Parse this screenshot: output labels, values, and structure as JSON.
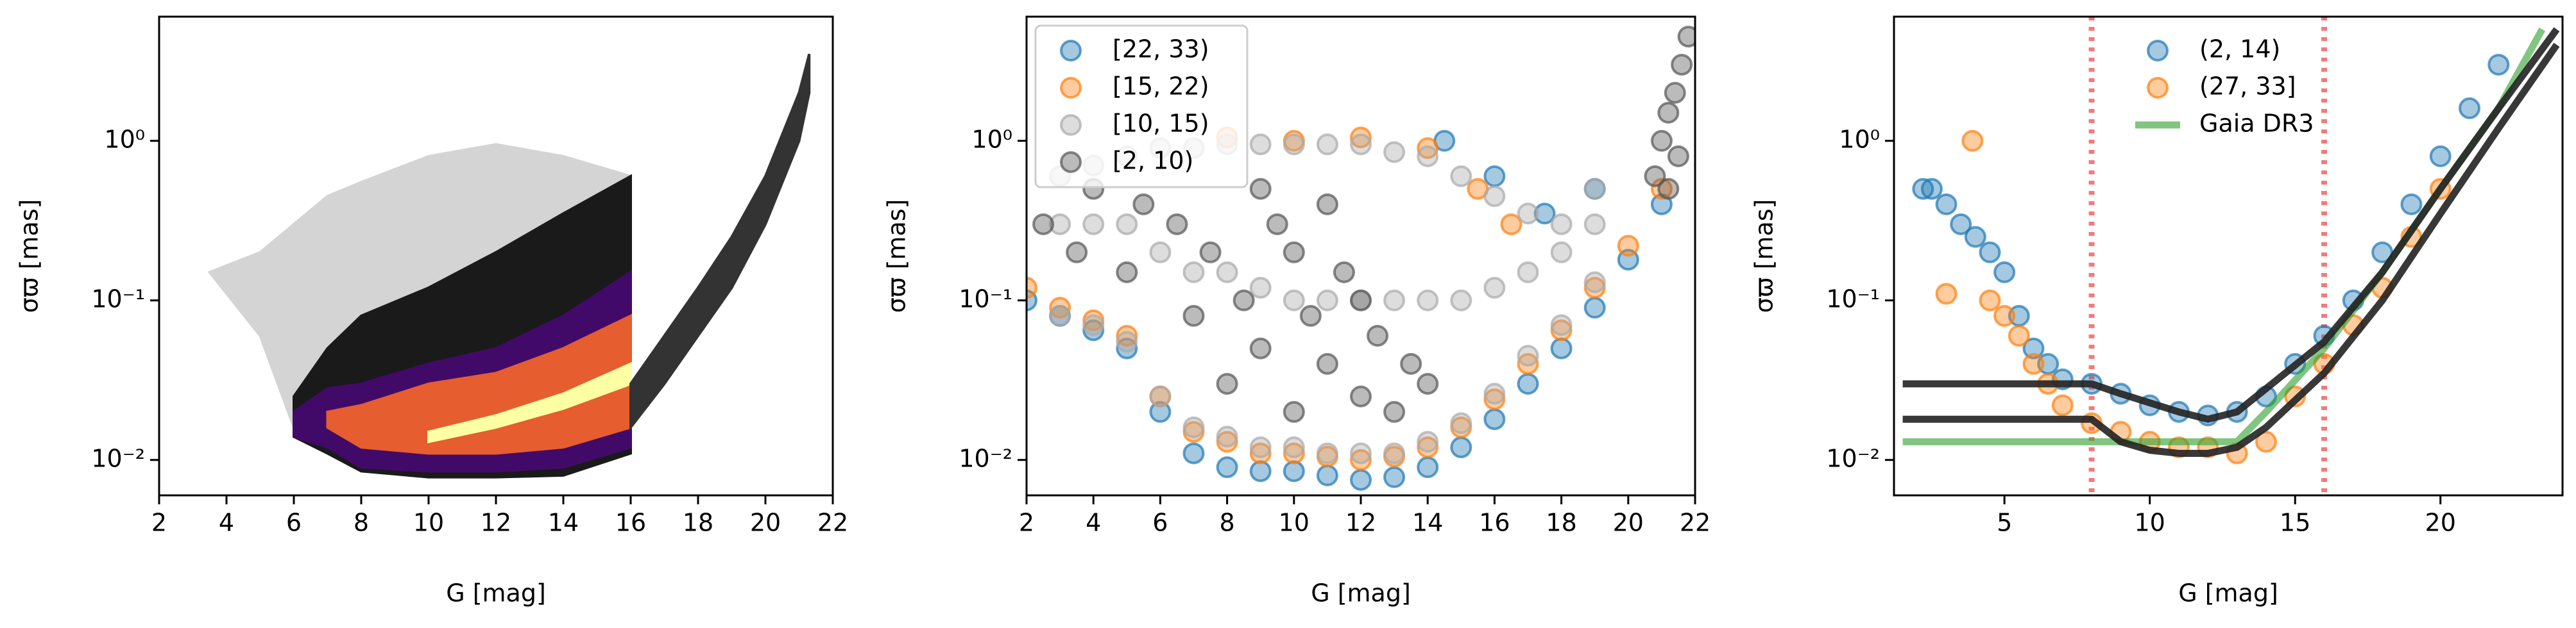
{
  "chart_data": [
    {
      "type": "density",
      "xlabel": "G [mag]",
      "ylabel": "σϖ [mas]",
      "ylog": true,
      "xlim": [
        2,
        22
      ],
      "xticks": [
        2,
        4,
        6,
        8,
        10,
        12,
        14,
        16,
        18,
        20,
        22
      ],
      "ylim": [
        0.006,
        6
      ],
      "yticks": [
        {
          "value": 0.01,
          "label": "10⁻²"
        },
        {
          "value": 0.1,
          "label": "10⁻¹"
        },
        {
          "value": 1,
          "label": "10⁰"
        }
      ],
      "series": [
        {
          "color": "#d4d4d4",
          "x": [
            3.5,
            5,
            6,
            7,
            8,
            10,
            12,
            14,
            16
          ],
          "low": [
            0.15,
            0.06,
            0.016,
            0.012,
            0.009,
            0.008,
            0.008,
            0.008,
            0.012
          ],
          "high": [
            0.15,
            0.2,
            0.3,
            0.45,
            0.55,
            0.8,
            0.95,
            0.8,
            0.6
          ]
        },
        {
          "color": "#1a1a1a",
          "x": [
            6,
            7,
            8,
            10,
            12,
            14,
            16
          ],
          "low": [
            0.014,
            0.011,
            0.0085,
            0.0078,
            0.0078,
            0.008,
            0.011
          ],
          "high": [
            0.025,
            0.05,
            0.08,
            0.12,
            0.2,
            0.35,
            0.6
          ]
        },
        {
          "color": "#420a68",
          "x": [
            6,
            7,
            8,
            10,
            12,
            14,
            16
          ],
          "low": [
            0.014,
            0.012,
            0.009,
            0.0085,
            0.0085,
            0.009,
            0.012
          ],
          "high": [
            0.02,
            0.028,
            0.03,
            0.04,
            0.05,
            0.08,
            0.15
          ]
        },
        {
          "color": "#e65d2f",
          "x": [
            7,
            8,
            10,
            12,
            14,
            16
          ],
          "low": [
            0.016,
            0.012,
            0.011,
            0.011,
            0.012,
            0.016
          ],
          "high": [
            0.02,
            0.022,
            0.03,
            0.035,
            0.05,
            0.08
          ]
        },
        {
          "color": "#fcffa4",
          "x": [
            10,
            12,
            14,
            16
          ],
          "low": [
            0.013,
            0.016,
            0.021,
            0.03
          ],
          "high": [
            0.015,
            0.019,
            0.026,
            0.04
          ]
        },
        {
          "color": "#333333",
          "x": [
            16,
            17,
            18,
            19,
            20,
            21,
            21.3
          ],
          "low": [
            0.016,
            0.03,
            0.06,
            0.12,
            0.3,
            1.0,
            2.0
          ],
          "high": [
            0.03,
            0.06,
            0.12,
            0.25,
            0.6,
            2.0,
            3.5
          ]
        }
      ]
    },
    {
      "type": "scatter",
      "xlabel": "G [mag]",
      "ylabel": "σϖ [mas]",
      "ylog": true,
      "legend": "upper left",
      "legend_frame": true,
      "xlim": [
        2,
        22
      ],
      "xticks": [
        2,
        4,
        6,
        8,
        10,
        12,
        14,
        16,
        18,
        20,
        22
      ],
      "ylim": [
        0.006,
        6
      ],
      "yticks": [
        {
          "value": 0.01,
          "label": "10⁻²"
        },
        {
          "value": 0.1,
          "label": "10⁻¹"
        },
        {
          "value": 1,
          "label": "10⁰"
        }
      ],
      "series": [
        {
          "name": "[22, 33)",
          "color": "#1f77b4",
          "mode": "markers",
          "x": [
            2,
            3,
            4,
            5,
            6,
            7,
            8,
            9,
            10,
            11,
            12,
            13,
            14,
            15,
            16,
            17,
            18,
            19,
            20,
            21,
            14.5,
            16,
            17.5,
            19
          ],
          "y": [
            0.1,
            0.08,
            0.065,
            0.05,
            0.02,
            0.011,
            0.009,
            0.0085,
            0.0085,
            0.008,
            0.0075,
            0.0078,
            0.009,
            0.012,
            0.018,
            0.03,
            0.05,
            0.09,
            0.18,
            0.4,
            1.0,
            0.6,
            0.35,
            0.5
          ]
        },
        {
          "name": "[15, 22)",
          "color": "#ff7f0e",
          "mode": "markers",
          "x": [
            2,
            3,
            4,
            5,
            6,
            7,
            8,
            9,
            10,
            11,
            12,
            13,
            14,
            15,
            16,
            17,
            18,
            19,
            20,
            21,
            8,
            10,
            12,
            14,
            15.5,
            16.5
          ],
          "y": [
            0.12,
            0.09,
            0.075,
            0.06,
            0.025,
            0.015,
            0.013,
            0.011,
            0.011,
            0.0105,
            0.01,
            0.0105,
            0.012,
            0.016,
            0.024,
            0.04,
            0.065,
            0.12,
            0.22,
            0.5,
            1.05,
            1.0,
            1.05,
            0.9,
            0.5,
            0.3
          ]
        },
        {
          "name": "[10, 15)",
          "color": "#aaaaaa",
          "mode": "markers",
          "x": [
            3,
            4,
            5,
            6,
            7,
            8,
            9,
            10,
            11,
            12,
            13,
            14,
            15,
            16,
            17,
            18,
            19,
            3,
            4,
            5,
            6,
            7,
            8,
            9,
            10,
            11,
            12,
            13,
            14,
            15,
            16,
            17,
            18,
            19,
            3,
            4,
            5,
            6,
            7,
            8,
            9,
            10,
            11,
            12,
            13,
            14,
            15,
            16,
            17,
            18,
            19
          ],
          "y": [
            0.08,
            0.07,
            0.055,
            0.025,
            0.016,
            0.014,
            0.012,
            0.012,
            0.011,
            0.011,
            0.011,
            0.013,
            0.017,
            0.026,
            0.045,
            0.07,
            0.13,
            0.3,
            0.3,
            0.3,
            0.2,
            0.15,
            0.15,
            0.12,
            0.1,
            0.1,
            0.1,
            0.1,
            0.1,
            0.1,
            0.12,
            0.15,
            0.2,
            0.3,
            0.6,
            0.7,
            0.8,
            0.9,
            0.9,
            0.95,
            0.95,
            0.95,
            0.95,
            0.95,
            0.85,
            0.8,
            0.6,
            0.45,
            0.35,
            0.3,
            0.5
          ]
        },
        {
          "name": "[2, 10)",
          "color": "#555555",
          "mode": "markers",
          "x": [
            2.5,
            3.5,
            4,
            5,
            5.5,
            6.5,
            7,
            7.5,
            8.5,
            9,
            9.5,
            10,
            10.5,
            11,
            11.5,
            12,
            12.5,
            13,
            13.5,
            14,
            9,
            10,
            11,
            12,
            8,
            20.8,
            21,
            21.2,
            21.4,
            21.6,
            21.8,
            21.5,
            21.2
          ],
          "y": [
            0.3,
            0.2,
            0.5,
            0.15,
            0.4,
            0.3,
            0.08,
            0.2,
            0.1,
            0.05,
            0.3,
            0.02,
            0.08,
            0.04,
            0.15,
            0.025,
            0.06,
            0.02,
            0.04,
            0.03,
            0.5,
            0.2,
            0.4,
            0.1,
            0.03,
            0.6,
            1.0,
            1.5,
            2.0,
            3.0,
            4.5,
            0.8,
            0.5
          ]
        }
      ]
    },
    {
      "type": "scatter",
      "xlabel": "G [mag]",
      "ylabel": "σϖ [mas]",
      "ylog": true,
      "legend": "upper center",
      "legend_frame": false,
      "xlim": [
        1.2,
        24.2
      ],
      "xticks": [
        5,
        10,
        15,
        20
      ],
      "ylim": [
        0.006,
        6
      ],
      "yticks": [
        {
          "value": 0.01,
          "label": "10⁻²"
        },
        {
          "value": 0.1,
          "label": "10⁻¹"
        },
        {
          "value": 1,
          "label": "10⁰"
        }
      ],
      "vlines": [
        8,
        16
      ],
      "vline_color": "#f47a7a",
      "series": [
        {
          "name": "(2, 14)",
          "color": "#1f77b4",
          "mode": "markers",
          "x": [
            2.2,
            2.5,
            3,
            3.5,
            4,
            4.5,
            5,
            5.5,
            6,
            6.5,
            7,
            8,
            9,
            10,
            11,
            12,
            13,
            14,
            15,
            16,
            17,
            18,
            19,
            20,
            21,
            22
          ],
          "y": [
            0.5,
            0.5,
            0.4,
            0.3,
            0.25,
            0.2,
            0.15,
            0.08,
            0.05,
            0.04,
            0.032,
            0.03,
            0.026,
            0.022,
            0.02,
            0.019,
            0.02,
            0.025,
            0.04,
            0.06,
            0.1,
            0.2,
            0.4,
            0.8,
            1.6,
            3
          ]
        },
        {
          "name": "(27, 33]",
          "color": "#ff7f0e",
          "mode": "markers",
          "x": [
            3,
            3.9,
            4.5,
            5,
            5.5,
            6,
            6.5,
            7,
            8,
            9,
            10,
            11,
            12,
            13,
            14,
            15,
            16,
            17,
            18,
            19,
            20
          ],
          "y": [
            0.11,
            1.0,
            0.1,
            0.08,
            0.06,
            0.04,
            0.03,
            0.022,
            0.017,
            0.015,
            0.013,
            0.012,
            0.012,
            0.011,
            0.013,
            0.025,
            0.04,
            0.07,
            0.12,
            0.25,
            0.5
          ]
        },
        {
          "name": "Gaia DR3",
          "color": "#2ca02c",
          "mode": "line",
          "x": [
            1.5,
            13,
            14,
            16,
            18,
            20,
            22,
            23.5
          ],
          "y": [
            0.013,
            0.013,
            0.02,
            0.05,
            0.15,
            0.5,
            1.6,
            5
          ]
        },
        {
          "color": "#222222",
          "mode": "line",
          "x": [
            1.5,
            8,
            9,
            11,
            12,
            13,
            14,
            16,
            18,
            20,
            22,
            24
          ],
          "y": [
            0.03,
            0.03,
            0.026,
            0.02,
            0.018,
            0.02,
            0.028,
            0.055,
            0.15,
            0.5,
            1.6,
            5
          ]
        },
        {
          "color": "#222222",
          "mode": "line",
          "x": [
            1.5,
            8,
            9,
            10,
            11,
            12,
            13,
            14,
            16,
            18,
            20,
            22,
            24
          ],
          "y": [
            0.018,
            0.018,
            0.013,
            0.0115,
            0.011,
            0.011,
            0.012,
            0.016,
            0.035,
            0.1,
            0.35,
            1.2,
            4
          ]
        }
      ]
    }
  ]
}
